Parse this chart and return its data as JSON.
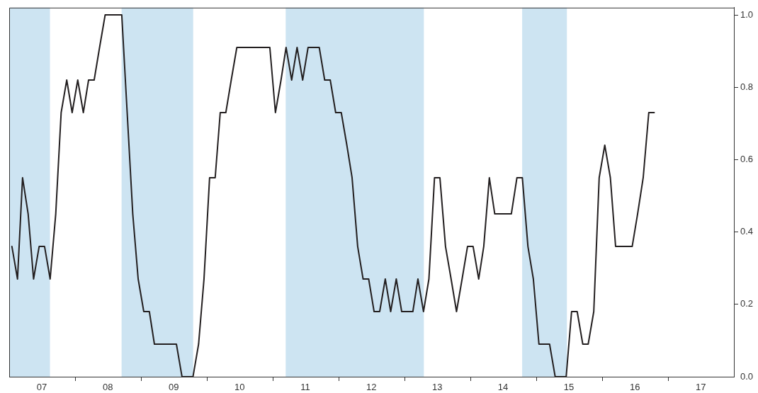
{
  "chart_data": {
    "type": "line",
    "x": [
      "2007-01-16",
      "2007-02-16",
      "2007-03-16",
      "2007-04-16",
      "2007-05-16",
      "2007-06-16",
      "2007-07-16",
      "2007-08-16",
      "2007-09-16",
      "2007-10-16",
      "2007-11-16",
      "2007-12-16",
      "2008-01-16",
      "2008-02-16",
      "2008-03-16",
      "2008-04-16",
      "2008-05-16",
      "2008-06-16",
      "2008-07-16",
      "2008-08-16",
      "2008-09-16",
      "2008-10-16",
      "2008-11-16",
      "2008-12-16",
      "2009-01-16",
      "2009-02-16",
      "2009-03-16",
      "2009-04-16",
      "2009-05-16",
      "2009-06-16",
      "2009-07-16",
      "2009-08-16",
      "2009-09-16",
      "2009-10-16",
      "2009-11-16",
      "2009-12-16",
      "2010-01-16",
      "2010-02-16",
      "2010-03-16",
      "2010-04-16",
      "2010-05-16",
      "2010-06-16",
      "2010-07-16",
      "2010-08-16",
      "2010-09-16",
      "2010-10-16",
      "2010-11-16",
      "2010-12-16",
      "2011-01-16",
      "2011-02-16",
      "2011-03-16",
      "2011-04-16",
      "2011-05-16",
      "2011-06-16",
      "2011-07-16",
      "2011-08-16",
      "2011-09-16",
      "2011-10-16",
      "2011-11-16",
      "2011-12-16",
      "2012-01-16",
      "2012-02-16",
      "2012-03-16",
      "2012-04-16",
      "2012-05-16",
      "2012-06-16",
      "2012-07-16",
      "2012-08-16",
      "2012-09-16",
      "2012-10-16",
      "2012-11-16",
      "2012-12-16",
      "2013-01-16",
      "2013-02-16",
      "2013-03-16",
      "2013-04-16",
      "2013-05-16",
      "2013-06-16",
      "2013-07-16",
      "2013-08-16",
      "2013-09-16",
      "2013-10-16",
      "2013-11-16",
      "2013-12-16",
      "2014-01-16",
      "2014-02-16",
      "2014-03-16",
      "2014-04-16",
      "2014-05-16",
      "2014-06-16",
      "2014-07-16",
      "2014-08-16",
      "2014-09-16",
      "2014-10-16",
      "2014-11-16",
      "2014-12-16",
      "2015-01-16",
      "2015-02-16",
      "2015-03-16",
      "2015-04-16",
      "2015-05-16",
      "2015-06-16",
      "2015-07-16",
      "2015-08-16",
      "2015-09-16",
      "2015-10-16",
      "2015-11-16",
      "2015-12-16",
      "2016-01-16",
      "2016-02-16",
      "2016-03-16",
      "2016-04-16",
      "2016-05-16",
      "2016-06-16",
      "2016-07-16",
      "2016-08-16",
      "2016-09-16",
      "2016-10-16"
    ],
    "series": [
      {
        "color": "#231f20",
        "values": [
          0.36,
          0.27,
          0.55,
          0.45,
          0.27,
          0.36,
          0.36,
          0.27,
          0.45,
          0.73,
          0.82,
          0.73,
          0.82,
          0.73,
          0.82,
          0.82,
          0.91,
          1,
          1,
          1,
          1,
          0.73,
          0.45,
          0.27,
          0.18,
          0.18,
          0.09,
          0.09,
          0.09,
          0.09,
          0.09,
          0,
          0,
          0,
          0.09,
          0.27,
          0.55,
          0.55,
          0.73,
          0.73,
          0.82,
          0.91,
          0.91,
          0.91,
          0.91,
          0.91,
          0.91,
          0.91,
          0.73,
          0.82,
          0.91,
          0.82,
          0.91,
          0.82,
          0.91,
          0.91,
          0.91,
          0.82,
          0.82,
          0.73,
          0.73,
          0.64,
          0.55,
          0.36,
          0.27,
          0.27,
          0.18,
          0.18,
          0.27,
          0.18,
          0.27,
          0.18,
          0.18,
          0.18,
          0.27,
          0.18,
          0.27,
          0.55,
          0.55,
          0.36,
          0.27,
          0.18,
          0.27,
          0.36,
          0.36,
          0.27,
          0.36,
          0.55,
          0.45,
          0.45,
          0.45,
          0.45,
          0.55,
          0.55,
          0.36,
          0.27,
          0.09,
          0.09,
          0.09,
          0,
          0,
          0,
          0.18,
          0.18,
          0.09,
          0.09,
          0.18,
          0.55,
          0.64,
          0.55,
          0.36,
          0.36,
          0.36,
          0.36,
          0.45,
          0.55,
          0.73,
          0.73
        ]
      }
    ],
    "xlim": [
      "2007-01-01",
      "2018-01-01"
    ],
    "xticks": [
      {
        "value": "2007-07-01",
        "label": "07"
      },
      {
        "value": "2008-01-01",
        "label": null
      },
      {
        "value": "2008-07-01",
        "label": "08"
      },
      {
        "value": "2009-01-01",
        "label": null
      },
      {
        "value": "2009-07-01",
        "label": "09"
      },
      {
        "value": "2010-01-01",
        "label": null
      },
      {
        "value": "2010-07-01",
        "label": "10"
      },
      {
        "value": "2011-01-01",
        "label": null
      },
      {
        "value": "2011-07-01",
        "label": "11"
      },
      {
        "value": "2012-01-01",
        "label": null
      },
      {
        "value": "2012-07-01",
        "label": "12"
      },
      {
        "value": "2013-01-01",
        "label": null
      },
      {
        "value": "2013-07-01",
        "label": "13"
      },
      {
        "value": "2014-01-01",
        "label": null
      },
      {
        "value": "2014-07-01",
        "label": "14"
      },
      {
        "value": "2015-01-01",
        "label": null
      },
      {
        "value": "2015-07-01",
        "label": "15"
      },
      {
        "value": "2016-01-01",
        "label": null
      },
      {
        "value": "2016-07-01",
        "label": "16"
      },
      {
        "value": "2017-01-01",
        "label": null
      },
      {
        "value": "2017-07-01",
        "label": "17"
      }
    ],
    "ylim": [
      0,
      1.02
    ],
    "yticks": [
      {
        "value": 0,
        "label": "0.0"
      },
      {
        "value": 0.2,
        "label": "0.2"
      },
      {
        "value": 0.4,
        "label": "0.4"
      },
      {
        "value": 0.6,
        "label": "0.6"
      },
      {
        "value": 0.8,
        "label": "0.8"
      },
      {
        "value": 1,
        "label": "1.0"
      }
    ],
    "bands": [
      {
        "axis": "x",
        "from": "2007-01-01",
        "to": "2007-08-15",
        "color": "#cde4f2"
      },
      {
        "axis": "x",
        "from": "2008-09-15",
        "to": "2009-10-17",
        "color": "#cde4f2"
      },
      {
        "axis": "x",
        "from": "2011-03-14",
        "to": "2013-04-18",
        "color": "#cde4f2"
      },
      {
        "axis": "x",
        "from": "2014-10-15",
        "to": "2015-06-20",
        "color": "#cde4f2"
      }
    ],
    "marker": "none",
    "line_style": "solid",
    "legend": false,
    "grid": false
  }
}
